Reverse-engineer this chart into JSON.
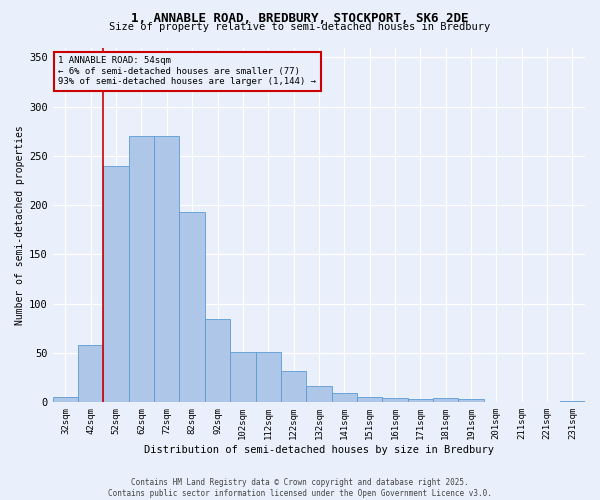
{
  "title_line1": "1, ANNABLE ROAD, BREDBURY, STOCKPORT, SK6 2DE",
  "title_line2": "Size of property relative to semi-detached houses in Bredbury",
  "xlabel": "Distribution of semi-detached houses by size in Bredbury",
  "ylabel": "Number of semi-detached properties",
  "categories": [
    "32sqm",
    "42sqm",
    "52sqm",
    "62sqm",
    "72sqm",
    "82sqm",
    "92sqm",
    "102sqm",
    "112sqm",
    "122sqm",
    "132sqm",
    "141sqm",
    "151sqm",
    "161sqm",
    "171sqm",
    "181sqm",
    "191sqm",
    "201sqm",
    "211sqm",
    "221sqm",
    "231sqm"
  ],
  "values": [
    5,
    58,
    240,
    270,
    270,
    193,
    85,
    51,
    51,
    32,
    17,
    9,
    5,
    4,
    3,
    4,
    3,
    0,
    0,
    0,
    1
  ],
  "bar_color": "#aec6e8",
  "bar_edge_color": "#5b9bd5",
  "background_color": "#eaf0fb",
  "grid_color": "#ffffff",
  "annotation_box_text": "1 ANNABLE ROAD: 54sqm\n← 6% of semi-detached houses are smaller (77)\n93% of semi-detached houses are larger (1,144) →",
  "annotation_box_color": "#cc0000",
  "property_line_x": 1.5,
  "ylim": [
    0,
    360
  ],
  "yticks": [
    0,
    50,
    100,
    150,
    200,
    250,
    300,
    350
  ],
  "footer_text": "Contains HM Land Registry data © Crown copyright and database right 2025.\nContains public sector information licensed under the Open Government Licence v3.0."
}
